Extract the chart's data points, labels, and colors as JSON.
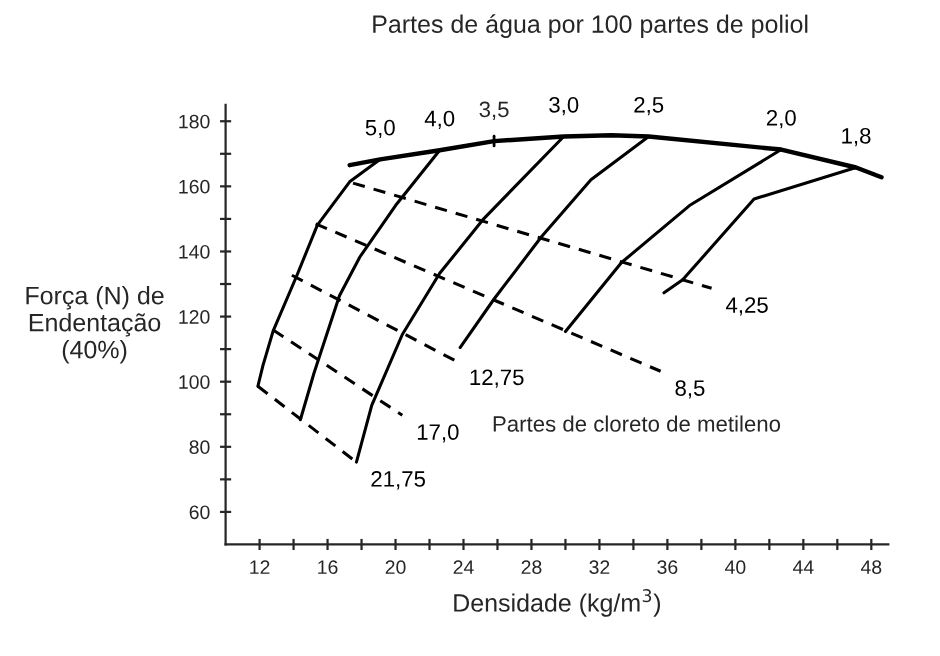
{
  "chart_data": {
    "type": "line",
    "title": "Partes de água por 100 partes de poliol",
    "xlabel": "Densidade (kg/m$^{3}$)",
    "ylabel": "Força (N) de\nEndentação\n(40%)",
    "xlim": [
      10,
      49
    ],
    "ylim": [
      50,
      185
    ],
    "xticks": [
      12,
      {
        "value": 14,
        "label": null
      },
      16,
      {
        "value": 18,
        "label": null
      },
      20,
      {
        "value": 22,
        "label": null
      },
      24,
      {
        "value": 26,
        "label": null
      },
      28,
      {
        "value": 30,
        "label": null
      },
      32,
      {
        "value": 34,
        "label": null
      },
      36,
      {
        "value": 38,
        "label": null
      },
      40,
      {
        "value": 42,
        "label": null
      },
      44,
      {
        "value": 46,
        "label": null
      },
      48
    ],
    "yticks": [
      60,
      {
        "value": 70,
        "label": null
      },
      80,
      {
        "value": 90,
        "label": null
      },
      100,
      {
        "value": 110,
        "label": null
      },
      120,
      {
        "value": 130,
        "label": null
      },
      140,
      {
        "value": 150,
        "label": null
      },
      160,
      {
        "value": 170,
        "label": null
      },
      180
    ],
    "series": [
      {
        "color": "#000000",
        "line_style": "solid",
        "x": [
          17.3,
          19.1,
          22.6,
          25.8,
          29.9,
          32.7,
          34.9,
          42.7,
          47.1,
          48.6
        ],
        "values": [
          166.5,
          168.3,
          171.1,
          173.9,
          175.3,
          175.7,
          175.3,
          171.3,
          165.8,
          162.8
        ]
      },
      {
        "name": "5,0",
        "color": "#000000",
        "line_style": "solid",
        "x": [
          19.1,
          17.3,
          15.4,
          14.2,
          12.8,
          12.2,
          11.9
        ],
        "values": [
          168.3,
          161.4,
          148.1,
          132.7,
          115.6,
          105,
          98.6
        ]
      },
      {
        "name": "4,0",
        "color": "#000000",
        "line_style": "solid",
        "x": [
          22.6,
          20.0,
          17.9,
          16.7,
          15.2,
          14.4
        ],
        "values": [
          171.1,
          154.1,
          138.3,
          126.4,
          102.6,
          88.3
        ]
      },
      {
        "name": "3,0",
        "color": "#000000",
        "line_style": "solid",
        "x": [
          29.9,
          25.2,
          22.6,
          20.4,
          18.6,
          17.7
        ],
        "values": [
          175.3,
          150.1,
          133.3,
          114.5,
          92.7,
          75.3
        ]
      },
      {
        "name": "2,5",
        "color": "#000000",
        "line_style": "solid",
        "x": [
          34.9,
          31.5,
          28.6,
          25.8,
          23.8
        ],
        "values": [
          175.3,
          162,
          144.6,
          125.4,
          110.5
        ]
      },
      {
        "name": "2,0",
        "color": "#000000",
        "line_style": "solid",
        "x": [
          42.7,
          37.3,
          33.3,
          30.0
        ],
        "values": [
          171.3,
          154.1,
          136.6,
          115.4
        ]
      },
      {
        "name": "1,8",
        "color": "#000000",
        "line_style": "solid",
        "x": [
          47.1,
          41.1,
          36.9,
          35.8
        ],
        "values": [
          165.8,
          156.1,
          131.3,
          127.3
        ]
      },
      {
        "name": "4,25",
        "color": "#000000",
        "line_style": "dashed",
        "x": [
          17.5,
          38.6
        ],
        "values": [
          161,
          128.7
        ]
      },
      {
        "name": "8,5",
        "color": "#000000",
        "line_style": "dashed",
        "x": [
          15.3,
          35.6
        ],
        "values": [
          148.5,
          103.2
        ]
      },
      {
        "name": "12,75",
        "color": "#000000",
        "line_style": "dashed",
        "x": [
          13.9,
          23.5
        ],
        "values": [
          132.7,
          106.5
        ]
      },
      {
        "name": "17,0",
        "color": "#000000",
        "line_style": "dashed",
        "x": [
          12.8,
          20.4
        ],
        "values": [
          115.9,
          89.7
        ]
      },
      {
        "name": "21,75",
        "color": "#000000",
        "line_style": "dashed",
        "x": [
          11.9,
          17.7
        ],
        "values": [
          98.6,
          75.3
        ]
      }
    ],
    "annotations": [
      {
        "text": "3,5",
        "x": 25.8,
        "y": 173.9
      },
      "Partes de cloreto de metileno"
    ]
  }
}
